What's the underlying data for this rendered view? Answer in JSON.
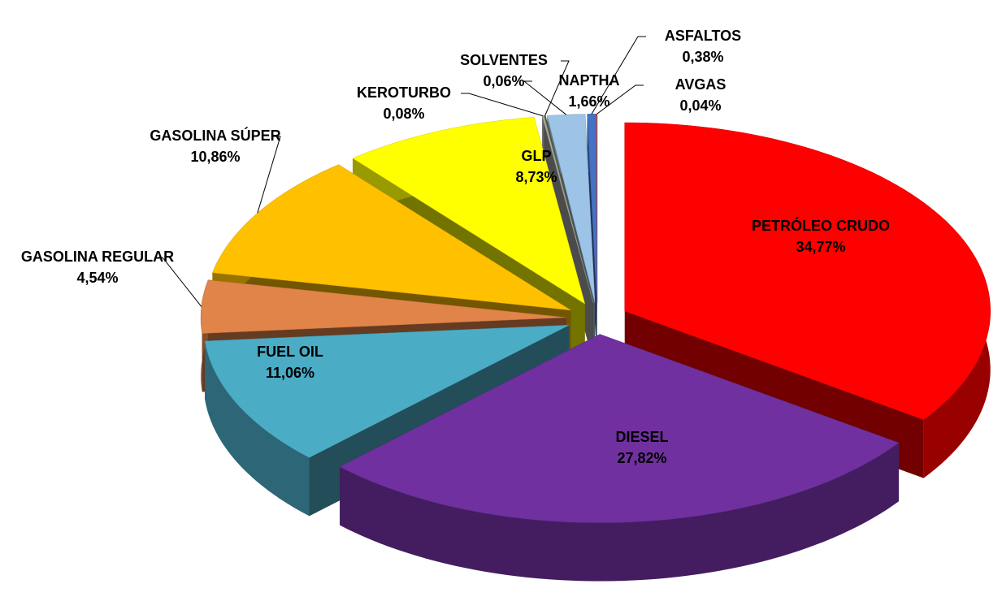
{
  "chart_data": {
    "type": "pie3d",
    "categories": [
      "PETRÓLEO CRUDO",
      "DIESEL",
      "FUEL OIL",
      "GASOLINA REGULAR",
      "GASOLINA SÚPER",
      "GLP",
      "KEROTURBO",
      "SOLVENTES",
      "NAPTHA",
      "ASFALTOS",
      "AVGAS"
    ],
    "values": [
      34.77,
      27.82,
      11.06,
      4.54,
      10.86,
      8.73,
      0.08,
      0.06,
      1.66,
      0.38,
      0.04
    ],
    "value_labels": [
      "34,77%",
      "27,82%",
      "11,06%",
      "4,54%",
      "10,86%",
      "8,73%",
      "0,08%",
      "0,06%",
      "1,66%",
      "0,38%",
      "0,04%"
    ],
    "colors": [
      "#ff0000",
      "#7030a0",
      "#4bacc6",
      "#e0844a",
      "#ffc000",
      "#ffff00",
      "#a6a6a6",
      "#4f6228",
      "#9dc3e6",
      "#4472c4",
      "#c0504d"
    ]
  }
}
